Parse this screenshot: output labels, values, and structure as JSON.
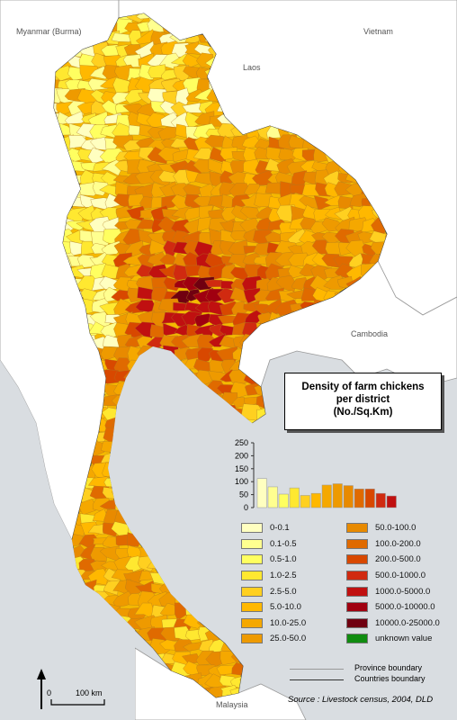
{
  "title": {
    "line1": "Density of farm chickens",
    "line2": "per district",
    "line3": "(No./Sq.Km)"
  },
  "country_labels": {
    "myanmar": "Myanmar (Burma)",
    "laos": "Laos",
    "vietnam": "Vietnam",
    "cambodia": "Cambodia",
    "malaysia": "Malaysia"
  },
  "legend": {
    "classes": [
      {
        "label": "0-0.1",
        "color": "#ffffc0",
        "hist": 112
      },
      {
        "label": "0.1-0.5",
        "color": "#ffff90",
        "hist": 80
      },
      {
        "label": "0.5-1.0",
        "color": "#ffff60",
        "hist": 52
      },
      {
        "label": "1.0-2.5",
        "color": "#ffe830",
        "hist": 76
      },
      {
        "label": "2.5-5.0",
        "color": "#ffd020",
        "hist": 47
      },
      {
        "label": "5.0-10.0",
        "color": "#ffb800",
        "hist": 55
      },
      {
        "label": "10.0-25.0",
        "color": "#f5a800",
        "hist": 87
      },
      {
        "label": "25.0-50.0",
        "color": "#ee9a00",
        "hist": 92
      },
      {
        "label": "50.0-100.0",
        "color": "#e88a00",
        "hist": 85
      },
      {
        "label": "100.0-200.0",
        "color": "#e06a00",
        "hist": 72
      },
      {
        "label": "200.0-500.0",
        "color": "#d84800",
        "hist": 72
      },
      {
        "label": "500.0-1000.0",
        "color": "#d02a10",
        "hist": 55
      },
      {
        "label": "1000.0-5000.0",
        "color": "#c01010",
        "hist": 45
      },
      {
        "label": "5000.0-10000.0",
        "color": "#a00010",
        "hist": 0
      },
      {
        "label": "10000.0-25000.0",
        "color": "#700010",
        "hist": 0
      },
      {
        "label": "unknown value",
        "color": "#108c10",
        "hist": 0
      }
    ],
    "hist_axis": {
      "ticks": [
        "0",
        "50",
        "100",
        "150",
        "200",
        "250"
      ],
      "max": 250
    }
  },
  "boundaries": {
    "province": "Province boundary",
    "country": "Countries boundary"
  },
  "scale": {
    "zero": "0",
    "distance": "100 km"
  },
  "source": "Source : Livestock census, 2004, DLD",
  "colors": {
    "sea": "#d9dde1",
    "land_other": "#ffffff",
    "country_border": "#888888"
  }
}
